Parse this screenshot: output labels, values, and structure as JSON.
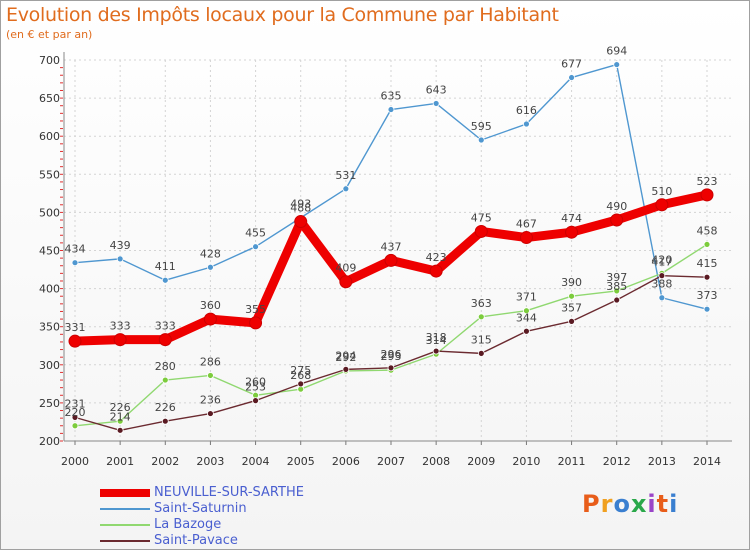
{
  "header": {
    "title": "Evolution des Impôts locaux pour la Commune par Habitant",
    "subtitle": "(en € et par an)"
  },
  "brand": {
    "logo": "Proxiti",
    "colors": [
      "#e85d1a",
      "#f0a020",
      "#3a7fd0",
      "#2aa84a",
      "#9a44c8",
      "#e85d1a",
      "#3a7fd0"
    ]
  },
  "chart_data": {
    "type": "line",
    "title": "Evolution des Impôts locaux pour la Commune par Habitant",
    "subtitle": "(en € et par an)",
    "xlabel": "",
    "ylabel": "",
    "x": [
      "2000",
      "2001",
      "2002",
      "2003",
      "2004",
      "2005",
      "2006",
      "2007",
      "2008",
      "2009",
      "2010",
      "2011",
      "2012",
      "2013",
      "2014"
    ],
    "y_ticks": [
      200,
      250,
      300,
      350,
      400,
      450,
      500,
      550,
      600,
      650,
      700
    ],
    "ylim": [
      200,
      700
    ],
    "grid": true,
    "legend_position": "bottom-left",
    "series": [
      {
        "name": "NEUVILLE-SUR-SARTHE",
        "color": "#ee0000",
        "point_color": "#ee0000",
        "emphasis": true,
        "values": [
          331,
          333,
          333,
          360,
          355,
          488,
          409,
          437,
          423,
          475,
          467,
          474,
          490,
          510,
          523
        ]
      },
      {
        "name": "Saint-Saturnin",
        "color": "#4f97d0",
        "point_color": "#4f97d0",
        "emphasis": false,
        "values": [
          434,
          439,
          411,
          428,
          455,
          493,
          531,
          635,
          643,
          595,
          616,
          677,
          694,
          388,
          373
        ]
      },
      {
        "name": "La Bazoge",
        "color": "#90d870",
        "point_color": "#7ccc3c",
        "emphasis": false,
        "values": [
          220,
          226,
          280,
          286,
          260,
          268,
          292,
          293,
          314,
          363,
          371,
          390,
          397,
          420,
          458
        ]
      },
      {
        "name": "Saint-Pavace",
        "color": "#6b2a30",
        "point_color": "#5a1a22",
        "emphasis": false,
        "values": [
          231,
          214,
          226,
          236,
          253,
          275,
          294,
          296,
          318,
          315,
          344,
          357,
          385,
          417,
          415
        ]
      }
    ]
  }
}
